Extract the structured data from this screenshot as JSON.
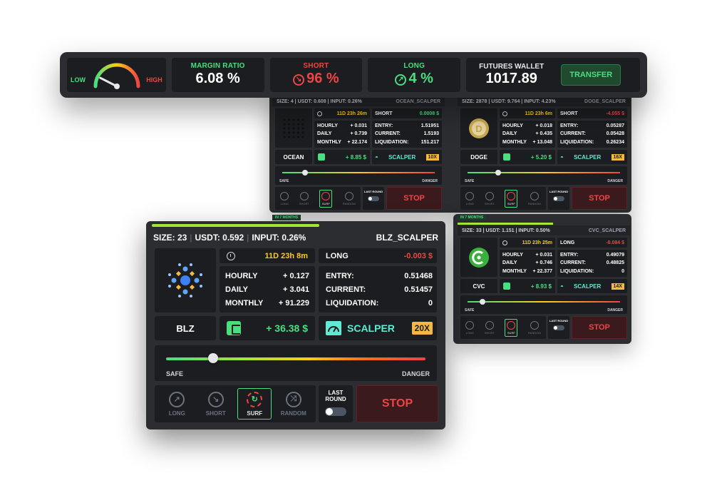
{
  "topbar": {
    "gauge": {
      "low_label": "LOW",
      "high_label": "HIGH",
      "level": 0.15
    },
    "margin_ratio": {
      "label": "MARGIN RATIO",
      "value": "6.08 %"
    },
    "short": {
      "label": "SHORT",
      "value": "96 %"
    },
    "long": {
      "label": "LONG",
      "value": "4 %"
    },
    "futures_wallet": {
      "label": "FUTURES WALLET",
      "value": "1017.89"
    },
    "transfer_label": "TRANSFER"
  },
  "cards_small": [
    {
      "header": {
        "size": "SIZE: 4",
        "usdt": "USDT: 0.608",
        "input": "INPUT: 0.26%",
        "name": "OCEAN_SCALPER"
      },
      "timer": "11D 23h 26m",
      "side": "SHORT",
      "side_value": "0.0008 $",
      "side_color": "green",
      "hourly_label": "HOURLY",
      "hourly": "+ 0.031",
      "daily_label": "DAILY",
      "daily": "+ 0.739",
      "monthly_label": "MONTHLY",
      "monthly": "+ 22.174",
      "entry_label": "ENTRY:",
      "entry": "1.51951",
      "current_label": "CURRENT:",
      "current": "1.5193",
      "liquidation_label": "LIQUIDATION:",
      "liquidation": "151.217",
      "symbol": "OCEAN",
      "gain": "+ 8.85 $",
      "strategy": "SCALPER",
      "leverage": "10X",
      "risk_level": 0.15,
      "safe_label": "SAFE",
      "danger_label": "DANGER",
      "modes": [
        "LONG",
        "SHORT",
        "SURF",
        "RANDOM"
      ],
      "last_round_label": "LAST ROUND",
      "stop_label": "STOP"
    },
    {
      "header": {
        "size": "SIZE: 2878",
        "usdt": "USDT: 9.764",
        "input": "INPUT: 4.23%",
        "name": "DOGE_SCALPER"
      },
      "timer": "11D 23h 6m",
      "side": "SHORT",
      "side_value": "-4.055 $",
      "side_color": "red",
      "hourly_label": "HOURLY",
      "hourly": "+ 0.018",
      "daily_label": "DAILY",
      "daily": "+ 0.435",
      "monthly_label": "MONTHLY",
      "monthly": "+ 13.048",
      "entry_label": "ENTRY:",
      "entry": "0.05287",
      "current_label": "CURRENT:",
      "current": "0.05428",
      "liquidation_label": "LIQUIDATION:",
      "liquidation": "0.26234",
      "symbol": "DOGE",
      "gain": "+ 5.20 $",
      "strategy": "SCALPER",
      "leverage": "16X",
      "risk_level": 0.2,
      "safe_label": "SAFE",
      "danger_label": "DANGER",
      "modes": [
        "LONG",
        "SHORT",
        "SURF",
        "RANDOM"
      ],
      "last_round_label": "LAST ROUND",
      "stop_label": "STOP"
    },
    {
      "header": {
        "size": "SIZE: 33",
        "usdt": "USDT: 1.151",
        "input": "INPUT: 0.50%",
        "name": "CVC_SCALPER"
      },
      "timer": "11D 23h 25m",
      "side": "LONG",
      "side_value": "-0.084 $",
      "side_color": "red",
      "hourly_label": "HOURLY",
      "hourly": "+ 0.031",
      "daily_label": "DAILY",
      "daily": "+ 0.746",
      "monthly_label": "MONTHLY",
      "monthly": "+ 22.377",
      "entry_label": "ENTRY:",
      "entry": "0.49079",
      "current_label": "CURRENT:",
      "current": "0.48825",
      "liquidation_label": "LIQUIDATION:",
      "liquidation": "0",
      "symbol": "CVC",
      "gain": "+ 8.93 $",
      "strategy": "SCALPER",
      "leverage": "14X",
      "risk_level": 0.1,
      "safe_label": "SAFE",
      "danger_label": "DANGER",
      "modes": [
        "LONG",
        "SHORT",
        "SURF",
        "RANDOM"
      ],
      "last_round_label": "LAST ROUND",
      "stop_label": "STOP"
    }
  ],
  "badges": {
    "in_months_1": "IN 7 MONTHS",
    "in_months_2": "IN 7 MONTHS"
  },
  "main_card": {
    "progress": 0.56,
    "header": {
      "size": "SIZE: 23",
      "usdt": "USDT: 0.592",
      "input": "INPUT: 0.26%",
      "name": "BLZ_SCALPER"
    },
    "timer": "11D 23h 8m",
    "side": "LONG",
    "side_value": "-0.003 $",
    "hourly_label": "HOURLY",
    "hourly": "+ 0.127",
    "daily_label": "DAILY",
    "daily": "+ 3.041",
    "monthly_label": "MONTHLY",
    "monthly": "+ 91.229",
    "entry_label": "ENTRY:",
    "entry": "0.51468",
    "current_label": "CURRENT:",
    "current": "0.51457",
    "liquidation_label": "LIQUIDATION:",
    "liquidation": "0",
    "symbol": "BLZ",
    "gain": "+ 36.38 $",
    "strategy": "SCALPER",
    "leverage": "20X",
    "risk_level": 0.18,
    "safe_label": "SAFE",
    "danger_label": "DANGER",
    "modes": {
      "long": "LONG",
      "short": "SHORT",
      "surf": "SURF",
      "random": "RANDOM"
    },
    "last_round_label": "LAST ROUND",
    "stop_label": "STOP"
  },
  "colors": {
    "green": "#4ade80",
    "red": "#ef4444",
    "yellow": "#facc15",
    "teal": "#5eead4",
    "panel": "#2b2d31",
    "cell": "#1c1d20"
  },
  "icons": {
    "wallet": "wallet-icon",
    "strategy": "speedometer-icon",
    "clock": "clock-icon",
    "long": "arrow-up-right-icon",
    "short": "arrow-down-right-icon",
    "surf": "refresh-icon",
    "random": "shuffle-icon"
  }
}
